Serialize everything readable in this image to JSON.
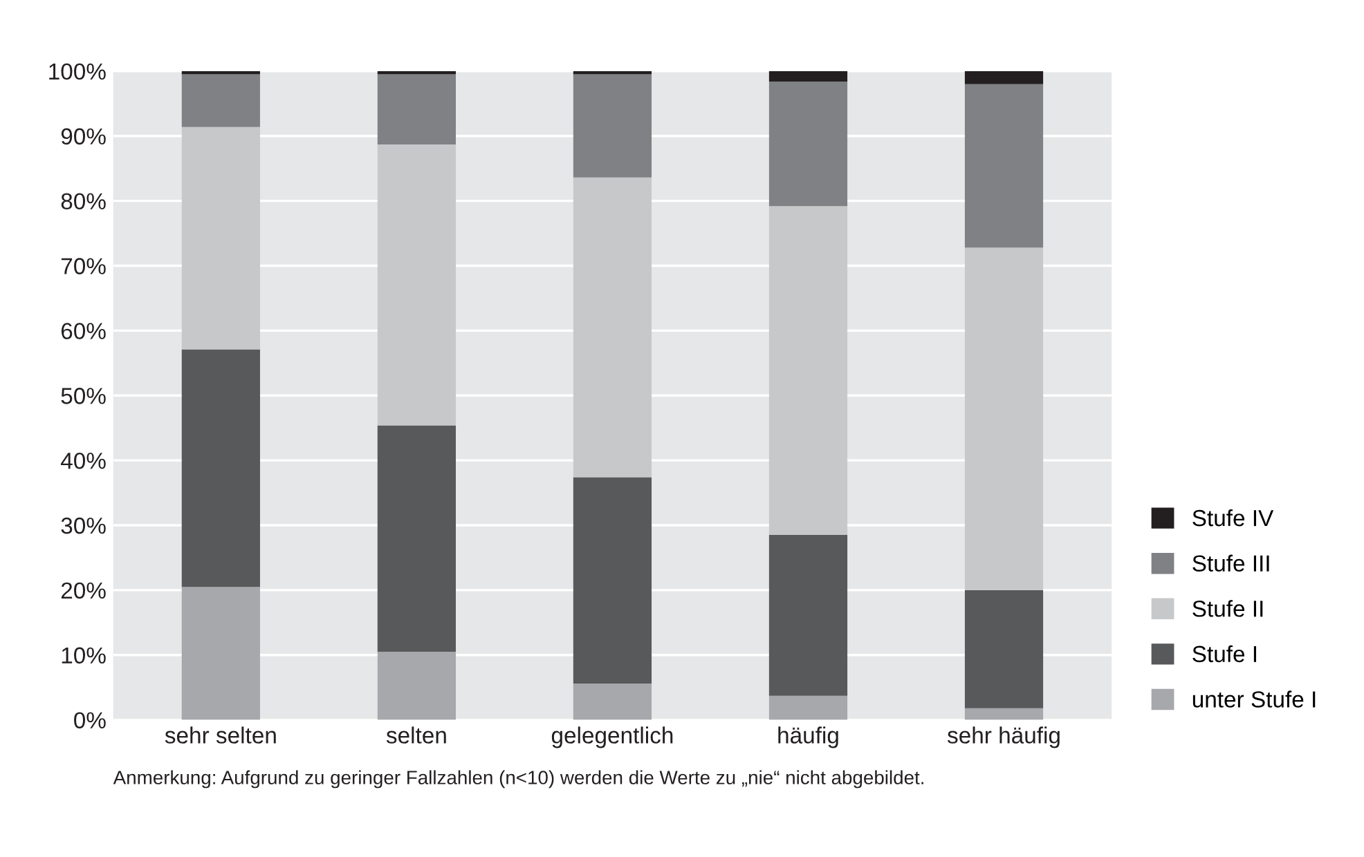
{
  "chart_data": {
    "type": "bar",
    "stacked": true,
    "categories": [
      "sehr selten",
      "selten",
      "gelegentlich",
      "häufig",
      "sehr häufig"
    ],
    "series": [
      {
        "name": "unter Stufe I",
        "color": "#a7a8ab",
        "values": [
          20.5,
          10.5,
          5.6,
          3.7,
          1.8
        ]
      },
      {
        "name": "Stufe I",
        "color": "#58595b",
        "values": [
          36.6,
          34.9,
          31.8,
          24.8,
          18.2
        ]
      },
      {
        "name": "Stufe II",
        "color": "#c7c8ca",
        "values": [
          34.3,
          43.3,
          46.2,
          50.7,
          52.8
        ]
      },
      {
        "name": "Stufe III",
        "color": "#808184",
        "values": [
          8.1,
          10.8,
          15.9,
          19.2,
          25.2
        ]
      },
      {
        "name": "Stufe IV",
        "color": "#231f20",
        "values": [
          0.5,
          0.5,
          0.5,
          1.6,
          2.0
        ]
      }
    ],
    "ylim": [
      0,
      100
    ],
    "yticks": [
      {
        "value": 0,
        "label": "0%"
      },
      {
        "value": 10,
        "label": "10%"
      },
      {
        "value": 20,
        "label": "20%"
      },
      {
        "value": 30,
        "label": "30%"
      },
      {
        "value": 40,
        "label": "40%"
      },
      {
        "value": 50,
        "label": "50%"
      },
      {
        "value": 60,
        "label": "60%"
      },
      {
        "value": 70,
        "label": "70%"
      },
      {
        "value": 80,
        "label": "80%"
      },
      {
        "value": 90,
        "label": "90%"
      },
      {
        "value": 100,
        "label": "100%"
      }
    ],
    "grid": "y",
    "legend": "bottom right",
    "annotations": [
      "Anmerkung: Aufgrund zu geringer Fallzahlen (n<10) werden die Werte zu „nie“ nicht abgebildet."
    ]
  }
}
